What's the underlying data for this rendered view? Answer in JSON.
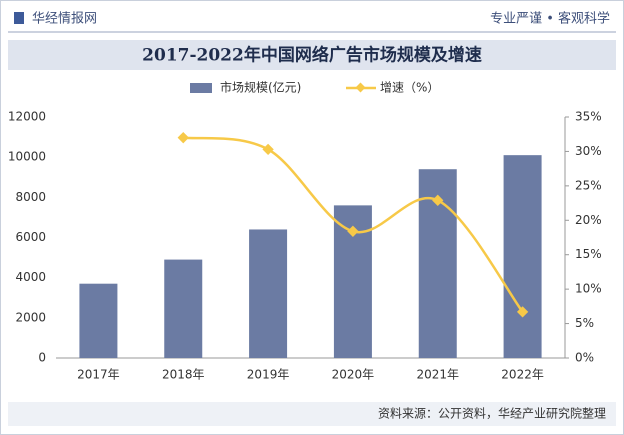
{
  "header": {
    "brand": "华经情报网",
    "slogan": "专业严谨 • 客观科学"
  },
  "chart_data": {
    "type": "bar_line",
    "title": "2017-2022年中国网络广告市场规模及增速",
    "categories": [
      "2017年",
      "2018年",
      "2019年",
      "2020年",
      "2021年",
      "2022年"
    ],
    "series": [
      {
        "name": "市场规模(亿元)",
        "color": "#6b7ba3",
        "type": "bar",
        "values": [
          3700,
          4900,
          6400,
          7600,
          9400,
          10100
        ]
      },
      {
        "name": "增速（%）",
        "color": "#f7c948",
        "type": "line",
        "axis": "y2",
        "values": [
          null,
          32,
          30.3,
          18.4,
          22.9,
          6.7
        ]
      }
    ],
    "ylim": [
      0,
      12000
    ],
    "yticks": [
      0,
      2000,
      4000,
      6000,
      8000,
      10000,
      12000
    ],
    "y2lim": [
      0,
      35
    ],
    "y2ticks": [
      {
        "value": 0,
        "label": "0%"
      },
      {
        "value": 5,
        "label": "5%"
      },
      {
        "value": 10,
        "label": "10%"
      },
      {
        "value": 15,
        "label": "15%"
      },
      {
        "value": 20,
        "label": "20%"
      },
      {
        "value": 25,
        "label": "25%"
      },
      {
        "value": 30,
        "label": "30%"
      },
      {
        "value": 35,
        "label": "35%"
      }
    ],
    "legend": "top"
  },
  "footer": {
    "source": "资料来源：公开资料，华经产业研究院整理"
  }
}
